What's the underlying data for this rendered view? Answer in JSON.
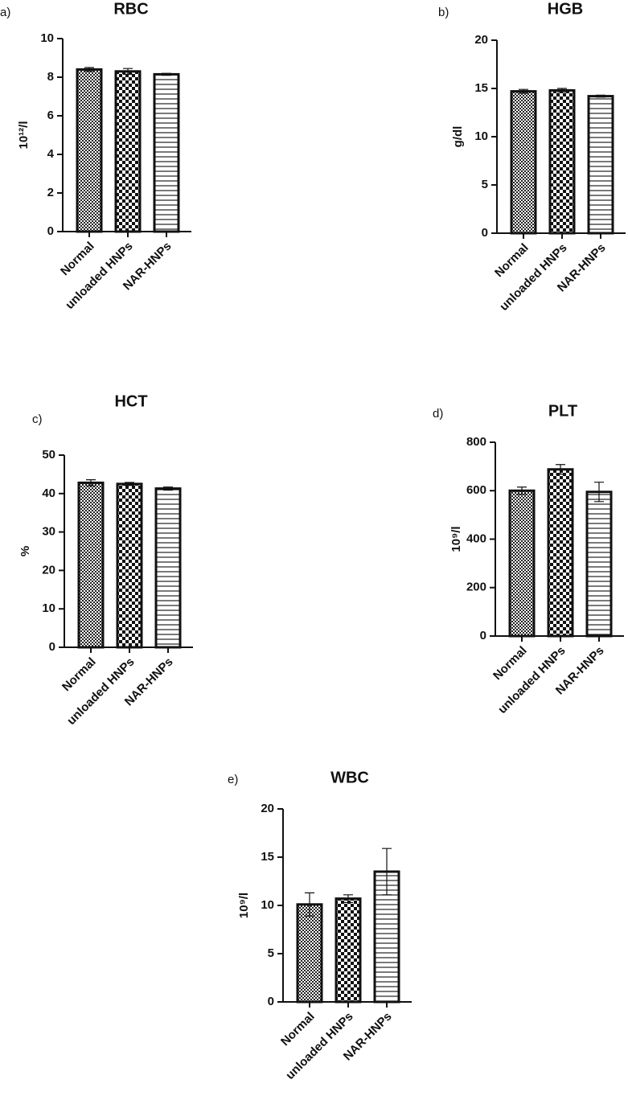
{
  "chart_data": [
    {
      "type": "bar",
      "panel": "a)",
      "title": "RBC",
      "ylabel": "10¹²/l",
      "categories": [
        "Normal",
        "unloaded HNPs",
        "NAR-HNPs"
      ],
      "values": [
        8.4,
        8.3,
        8.15
      ],
      "errors": [
        0.1,
        0.15,
        0.05
      ],
      "patterns": [
        "fine-checker",
        "checker",
        "horizontal-lines"
      ],
      "ylim": [
        0,
        10
      ],
      "yticks": [
        0,
        2,
        4,
        6,
        8,
        10
      ]
    },
    {
      "type": "bar",
      "panel": "b)",
      "title": "HGB",
      "ylabel": "g/dl",
      "categories": [
        "Normal",
        "unloaded HNPs",
        "NAR-HNPs"
      ],
      "values": [
        14.7,
        14.8,
        14.2
      ],
      "errors": [
        0.2,
        0.2,
        0.1
      ],
      "patterns": [
        "fine-checker",
        "checker",
        "horizontal-lines"
      ],
      "ylim": [
        0,
        20
      ],
      "yticks": [
        0,
        5,
        10,
        15,
        20
      ]
    },
    {
      "type": "bar",
      "panel": "c)",
      "title": "HCT",
      "ylabel": "%",
      "categories": [
        "Normal",
        "unloaded HNPs",
        "NAR-HNPs"
      ],
      "values": [
        42.8,
        42.5,
        41.3
      ],
      "errors": [
        0.8,
        0.4,
        0.4
      ],
      "patterns": [
        "fine-checker",
        "checker",
        "horizontal-lines"
      ],
      "ylim": [
        0,
        50
      ],
      "yticks": [
        0,
        10,
        20,
        30,
        40,
        50
      ]
    },
    {
      "type": "bar",
      "panel": "d)",
      "title": "PLT",
      "ylabel": "10⁹/l",
      "categories": [
        "Normal",
        "unloaded HNPs",
        "NAR-HNPs"
      ],
      "values": [
        600,
        688,
        595
      ],
      "errors": [
        15,
        20,
        40
      ],
      "patterns": [
        "fine-checker",
        "checker",
        "horizontal-lines"
      ],
      "ylim": [
        0,
        800
      ],
      "yticks": [
        0,
        200,
        400,
        600,
        800
      ]
    },
    {
      "type": "bar",
      "panel": "e)",
      "title": "WBC",
      "ylabel": "10⁹/l",
      "categories": [
        "Normal",
        "unloaded HNPs",
        "NAR-HNPs"
      ],
      "values": [
        10.1,
        10.7,
        13.5
      ],
      "errors": [
        1.2,
        0.4,
        2.4
      ],
      "patterns": [
        "fine-checker",
        "checker",
        "horizontal-lines"
      ],
      "ylim": [
        0,
        20
      ],
      "yticks": [
        0,
        5,
        10,
        15,
        20
      ]
    }
  ]
}
